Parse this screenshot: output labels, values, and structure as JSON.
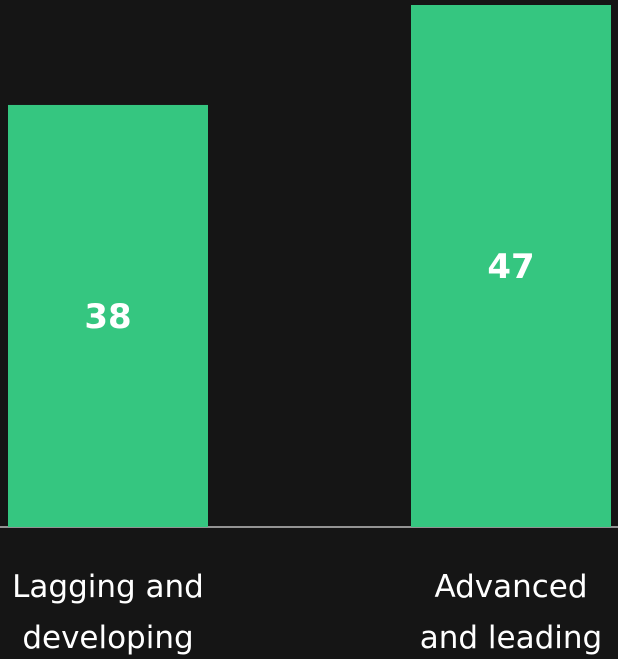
{
  "chart_data": {
    "type": "bar",
    "categories": [
      [
        "Lagging and",
        "developing"
      ],
      [
        "Advanced",
        "and leading"
      ]
    ],
    "values": [
      38,
      47
    ],
    "ylim": [
      0,
      47
    ],
    "grid": false,
    "colors": {
      "background": "#151515",
      "bar": "#35c680",
      "baseline": "#bdbdbd",
      "text": "#ffffff"
    }
  }
}
